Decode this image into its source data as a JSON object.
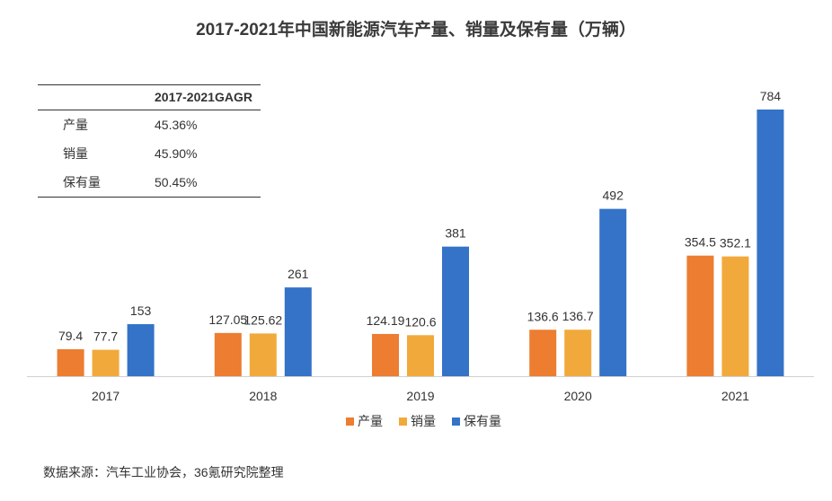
{
  "title": "2017-2021年中国新能源汽车产量、销量及保有量（万辆）",
  "gagr_table": {
    "header": "2017-2021GAGR",
    "rows": [
      {
        "label": "产量",
        "value": "45.36%"
      },
      {
        "label": "销量",
        "value": "45.90%"
      },
      {
        "label": "保有量",
        "value": "50.45%"
      }
    ]
  },
  "source": "数据来源：汽车工业协会，36氪研究院整理",
  "chart_data": {
    "type": "bar",
    "categories": [
      "2017",
      "2018",
      "2019",
      "2020",
      "2021"
    ],
    "series": [
      {
        "name": "产量",
        "color": "#ED7D31",
        "values": [
          79.4,
          127.05,
          124.19,
          136.6,
          354.5
        ],
        "labels": [
          "79.4",
          "127.05",
          "124.19",
          "136.6",
          "354.5"
        ]
      },
      {
        "name": "销量",
        "color": "#F2A93B",
        "values": [
          77.7,
          125.62,
          120.6,
          136.7,
          352.1
        ],
        "labels": [
          "77.7",
          "125.62",
          "120.6",
          "136.7",
          "352.1"
        ]
      },
      {
        "name": "保有量",
        "color": "#3473C7",
        "values": [
          153,
          261,
          381,
          492,
          784
        ],
        "labels": [
          "153",
          "261",
          "381",
          "492",
          "784"
        ]
      }
    ],
    "ylim": [
      0,
      810
    ],
    "legend_position": "bottom",
    "grid": false
  }
}
